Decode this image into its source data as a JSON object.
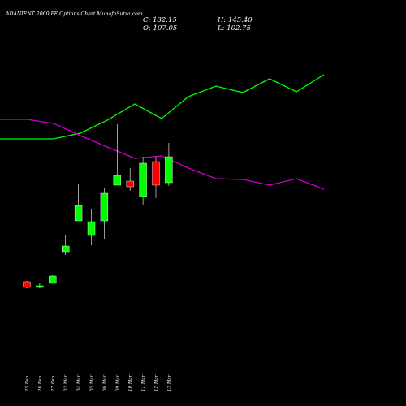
{
  "header": {
    "title": "ADANIENT 2060 PE Options Chart MunafaSutra.com",
    "close_text": "C: 132.15",
    "open_text": "O: 107.05",
    "high_text": "H: 145.40",
    "low_text": "L: 102.75"
  },
  "colors": {
    "background": "#000000",
    "up": "#00ff00",
    "down": "#ff0000",
    "wick": "#ffffff",
    "line_green": "#00ff00",
    "line_magenta": "#cc00cc"
  },
  "chart_data": {
    "type": "candlestick",
    "categories": [
      "25 Feb",
      "26 Feb",
      "27 Feb",
      "03 Mar",
      "04 Mar",
      "05 Mar",
      "06 Mar",
      "09 Mar",
      "10 Mar",
      "11 Mar",
      "12 Mar",
      "13 Mar"
    ],
    "ylim": [
      0,
      500
    ],
    "grid": false,
    "candles": [
      {
        "open": 153,
        "close": 146,
        "high": 154,
        "low": 145
      },
      {
        "open": 146,
        "close": 148,
        "high": 152,
        "low": 145
      },
      {
        "open": 151,
        "close": 160,
        "high": 161,
        "low": 151
      },
      {
        "open": 190,
        "close": 197,
        "high": 210,
        "low": 186
      },
      {
        "open": 228,
        "close": 247,
        "high": 274,
        "low": 228
      },
      {
        "open": 210,
        "close": 227,
        "high": 243,
        "low": 198
      },
      {
        "open": 228,
        "close": 262,
        "high": 268,
        "low": 206
      },
      {
        "open": 272,
        "close": 284,
        "high": 347,
        "low": 272
      },
      {
        "open": 277,
        "close": 270,
        "high": 293,
        "low": 265
      },
      {
        "open": 258,
        "close": 299,
        "high": 307,
        "low": 248
      },
      {
        "open": 301,
        "close": 272,
        "high": 307,
        "low": 256
      },
      {
        "open": 275,
        "close": 307,
        "high": 324,
        "low": 271
      }
    ],
    "lines": [
      {
        "color_key": "line_green",
        "x": [
          0,
          33,
          66,
          99,
          132,
          166,
          199,
          232,
          266,
          299,
          332,
          365,
          399
        ],
        "y": [
          329,
          329,
          329,
          336,
          352,
          372,
          354,
          381,
          394,
          386,
          403,
          387,
          408
        ]
      },
      {
        "color_key": "line_magenta",
        "x": [
          0,
          33,
          66,
          99,
          132,
          166,
          199,
          232,
          266,
          299,
          332,
          365,
          399
        ],
        "y": [
          353,
          353,
          348,
          333,
          319,
          305,
          308,
          293,
          280,
          279,
          272,
          280,
          267
        ]
      }
    ]
  }
}
